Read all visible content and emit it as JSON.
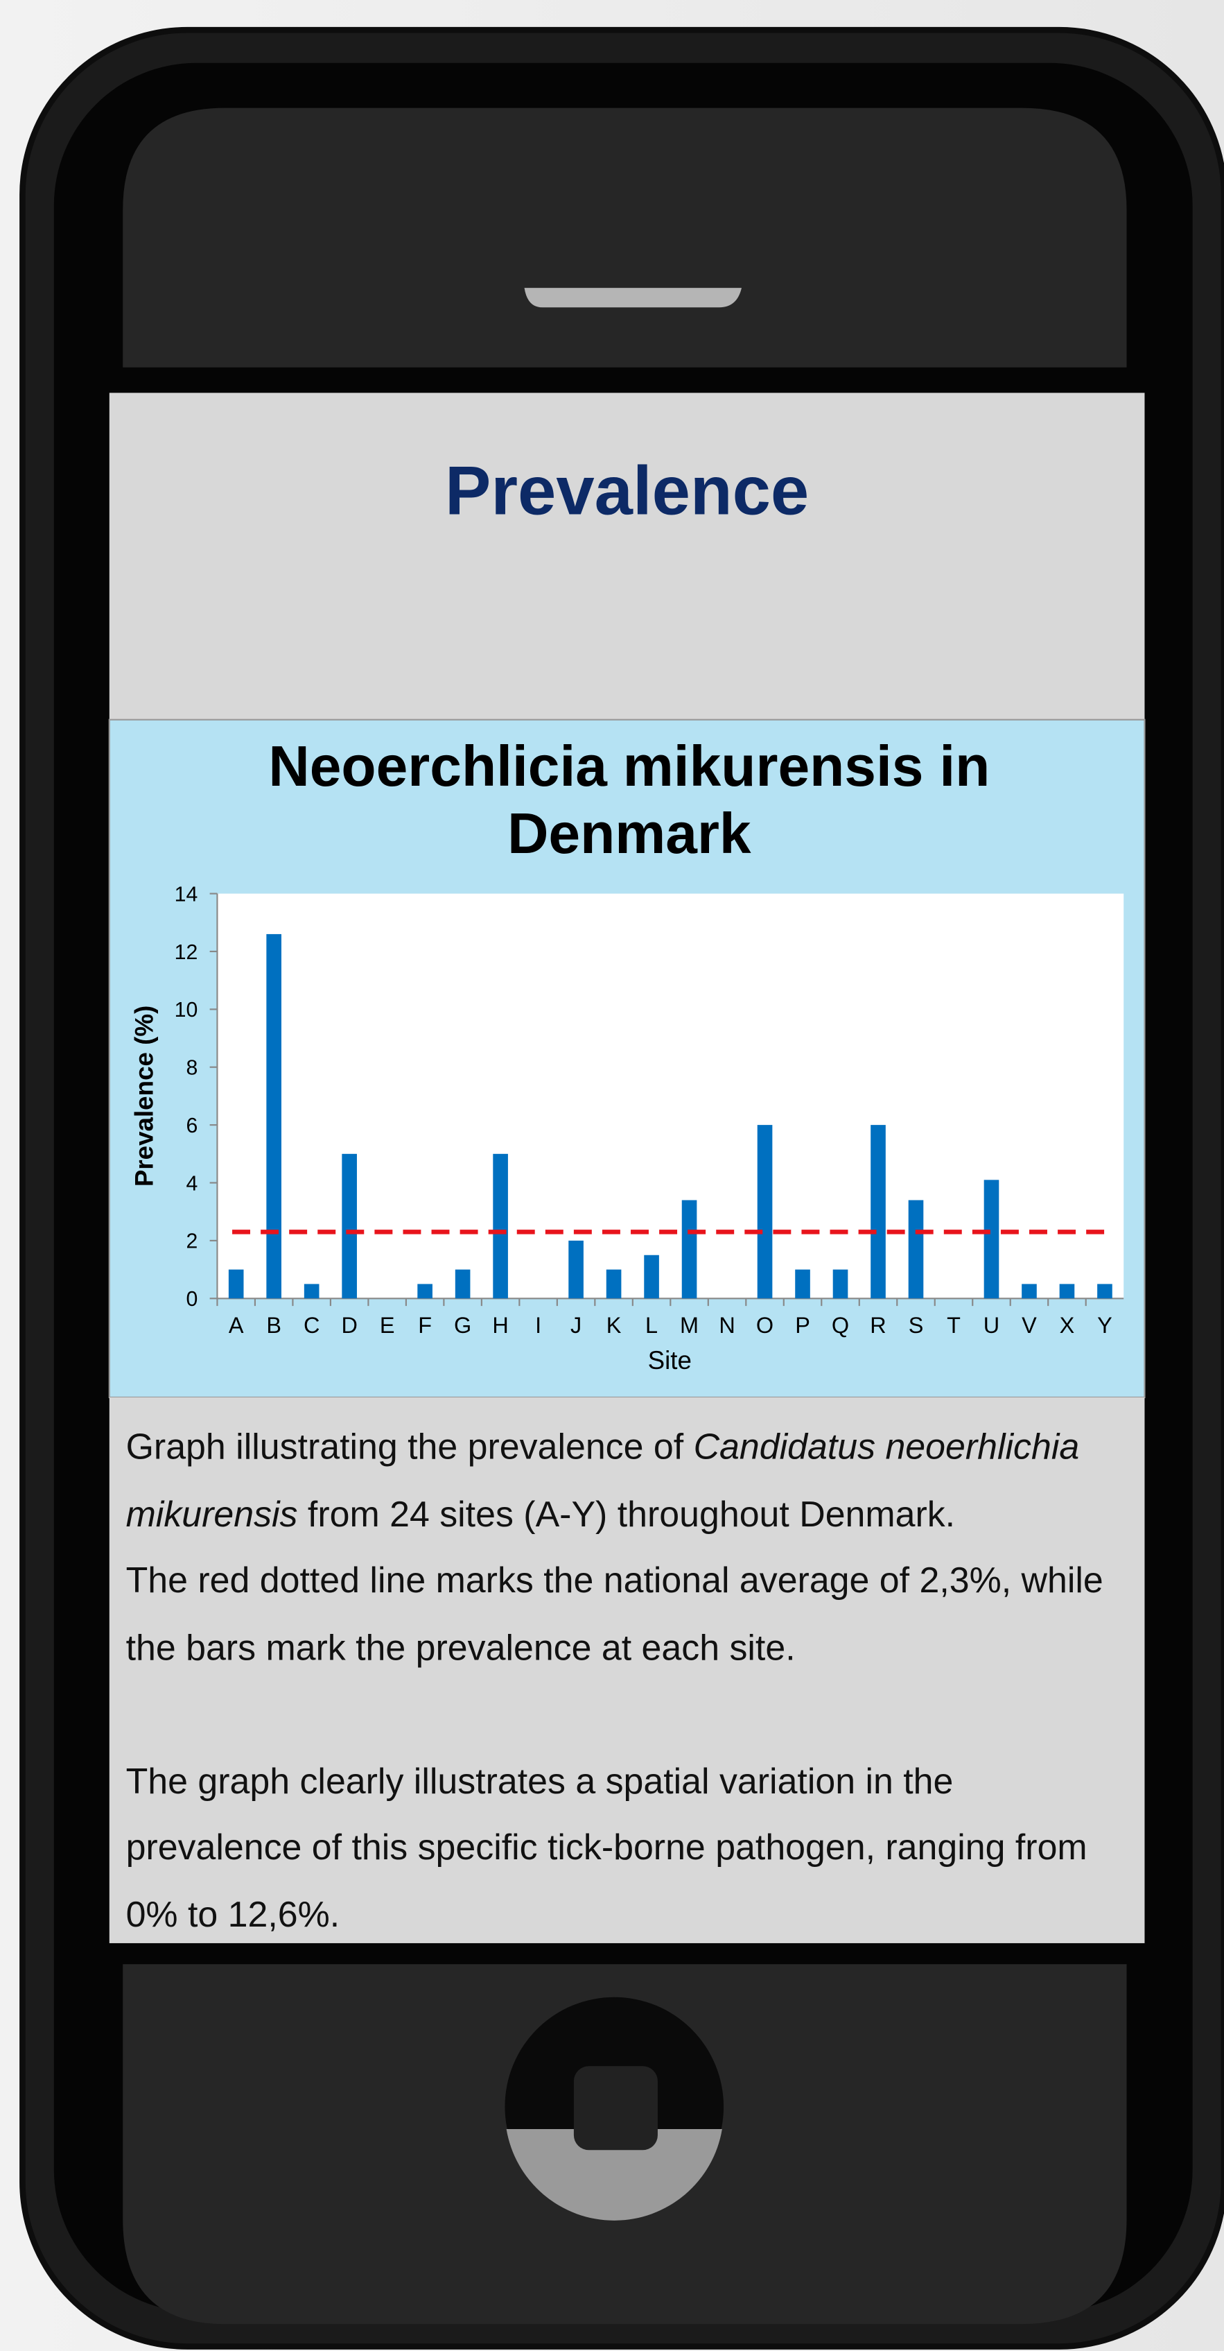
{
  "header": {
    "title": "Prevalence"
  },
  "chart_data": {
    "type": "bar",
    "title": "Neoerchlicia mikurensis in Denmark",
    "y_label": "Prevalence (%)",
    "x_label": "Site",
    "categories": [
      "A",
      "B",
      "C",
      "D",
      "E",
      "F",
      "G",
      "H",
      "I",
      "J",
      "K",
      "L",
      "M",
      "N",
      "O",
      "P",
      "Q",
      "R",
      "S",
      "T",
      "U",
      "V",
      "X",
      "Y"
    ],
    "values": [
      1,
      12.6,
      0.5,
      5,
      0,
      0.5,
      1,
      5,
      0,
      2,
      1,
      1.5,
      3.4,
      0,
      6,
      1,
      1,
      6,
      3.4,
      0,
      4.1,
      0.5,
      0.5,
      0.5
    ],
    "color": "#0070c0",
    "average_line": {
      "value": 2.3,
      "color": "#e8141c"
    },
    "ylim": [
      0,
      14
    ],
    "yticks": [
      0,
      2,
      4,
      6,
      8,
      10,
      12,
      14
    ],
    "grid": false
  },
  "description": [
    [
      "Graph illustrating the prevalence of ",
      "Candidatus neoerhlichia mikurensis",
      " from 24 sites (A-Y) throughout Denmark."
    ],
    [
      "The red dotted line marks the national average of 2,3%, while the bars mark the prevalence at each site."
    ],
    [
      "The graph clearly illustrates a spatial variation in the prevalence of this specific tick-borne pathogen, ranging from 0% to 12,6%."
    ]
  ]
}
